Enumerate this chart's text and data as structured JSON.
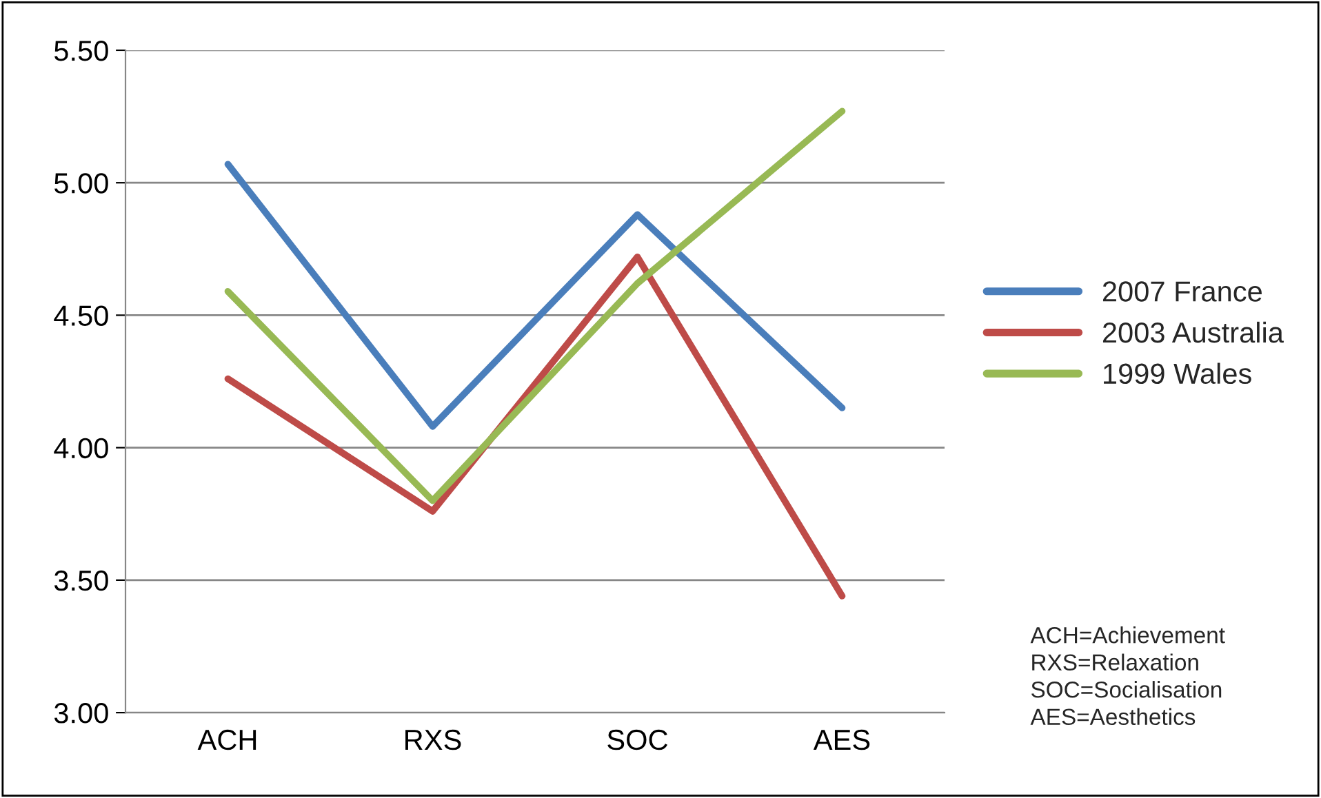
{
  "chart_data": {
    "type": "line",
    "categories": [
      "ACH",
      "RXS",
      "SOC",
      "AES"
    ],
    "series": [
      {
        "name": "2007 France",
        "color": "#4a7ebb",
        "values": [
          5.07,
          4.08,
          4.88,
          4.15
        ]
      },
      {
        "name": "2003 Australia",
        "color": "#be4b48",
        "values": [
          4.26,
          3.76,
          4.72,
          3.44
        ]
      },
      {
        "name": "1999 Wales",
        "color": "#98b954",
        "values": [
          4.59,
          3.8,
          4.62,
          5.27
        ]
      }
    ],
    "ylim": [
      3.0,
      5.5
    ],
    "yticks": [
      {
        "value": 3.0,
        "label": "3.00"
      },
      {
        "value": 3.5,
        "label": "3.50"
      },
      {
        "value": 4.0,
        "label": "4.00"
      },
      {
        "value": 4.5,
        "label": "4.50"
      },
      {
        "value": 5.0,
        "label": "5.00"
      },
      {
        "value": 5.5,
        "label": "5.50"
      }
    ],
    "grid": "y",
    "legend": "right",
    "marker": "none",
    "line_style": "solid",
    "annotations": [
      "ACH=Achievement\nRXS=Relaxation\nSOC=Socialisation\nAES=Aesthetics"
    ]
  }
}
